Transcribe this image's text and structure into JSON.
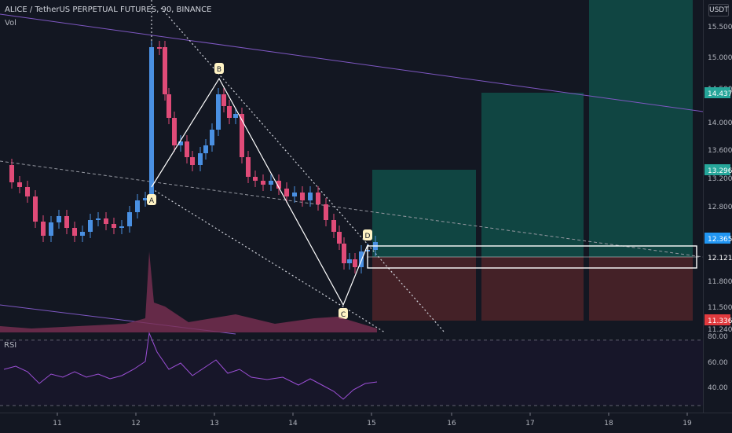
{
  "header": {
    "title": "ALICE / TetherUS PERPETUAL FUTURES, 90, BINANCE",
    "volume_label": "Vol",
    "rsi_label": "RSI",
    "currency_badge": "USDT"
  },
  "price_axis": {
    "ticks": [
      "15.500",
      "15.000",
      "14.500",
      "14.000",
      "13.600",
      "13.200",
      "12.800",
      "11.800",
      "11.500",
      "11.240"
    ],
    "tags": [
      {
        "text": "14.437",
        "color": "#26a69a"
      },
      {
        "text": "13.296",
        "color": "#26a69a"
      },
      {
        "text": "12.365",
        "color": "#2196f3"
      },
      {
        "text": "12.121",
        "color": "#131722"
      },
      {
        "text": "11.336",
        "color": "#e03a3e"
      }
    ]
  },
  "rsi_axis": {
    "ticks": [
      "80.00",
      "60.00",
      "40.00"
    ]
  },
  "time_axis": {
    "ticks": [
      "11",
      "12",
      "13",
      "14",
      "15",
      "16",
      "17",
      "18",
      "19"
    ]
  },
  "pattern_points": [
    "A",
    "B",
    "C",
    "D"
  ],
  "colors": {
    "background": "#131722",
    "up": "#4a90e2",
    "down": "#e04b78",
    "profit_zone": "#114e48",
    "loss_zone": "#4a2228",
    "trendline": "#7e57c2",
    "rsi_line": "#9c4fd6"
  }
}
